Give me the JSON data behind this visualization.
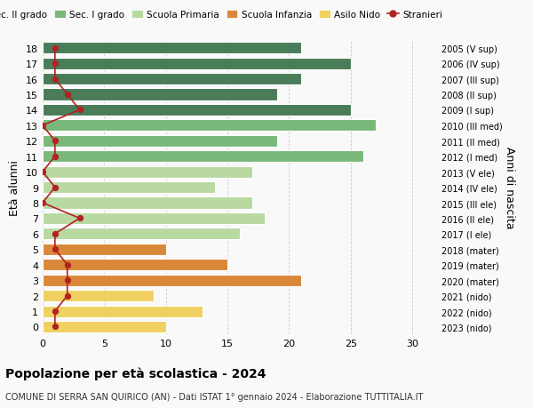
{
  "ages": [
    18,
    17,
    16,
    15,
    14,
    13,
    12,
    11,
    10,
    9,
    8,
    7,
    6,
    5,
    4,
    3,
    2,
    1,
    0
  ],
  "right_labels": [
    "2005 (V sup)",
    "2006 (IV sup)",
    "2007 (III sup)",
    "2008 (II sup)",
    "2009 (I sup)",
    "2010 (III med)",
    "2011 (II med)",
    "2012 (I med)",
    "2013 (V ele)",
    "2014 (IV ele)",
    "2015 (III ele)",
    "2016 (II ele)",
    "2017 (I ele)",
    "2018 (mater)",
    "2019 (mater)",
    "2020 (mater)",
    "2021 (nido)",
    "2022 (nido)",
    "2023 (nido)"
  ],
  "bar_values": [
    21,
    25,
    21,
    19,
    25,
    27,
    19,
    26,
    17,
    14,
    17,
    18,
    16,
    10,
    15,
    21,
    9,
    13,
    10
  ],
  "bar_colors": [
    "#4a7c59",
    "#4a7c59",
    "#4a7c59",
    "#4a7c59",
    "#4a7c59",
    "#7ab87a",
    "#7ab87a",
    "#7ab87a",
    "#b8d9a0",
    "#b8d9a0",
    "#b8d9a0",
    "#b8d9a0",
    "#b8d9a0",
    "#d9883a",
    "#d9883a",
    "#d9883a",
    "#f0d060",
    "#f0d060",
    "#f0d060"
  ],
  "stranieri_values": [
    1,
    1,
    1,
    2,
    3,
    0,
    1,
    1,
    0,
    1,
    0,
    3,
    1,
    1,
    2,
    2,
    2,
    1,
    1
  ],
  "stranieri_color": "#b22222",
  "legend_labels": [
    "Sec. II grado",
    "Sec. I grado",
    "Scuola Primaria",
    "Scuola Infanzia",
    "Asilo Nido",
    "Stranieri"
  ],
  "legend_colors": [
    "#4a7c59",
    "#7ab87a",
    "#b8d9a0",
    "#d9883a",
    "#f0d060",
    "#b22222"
  ],
  "xlabel": "Età alunni",
  "ylabel_right": "Anni di nascita",
  "title": "Popolazione per età scolastica - 2024",
  "subtitle": "COMUNE DI SERRA SAN QUIRICO (AN) - Dati ISTAT 1° gennaio 2024 - Elaborazione TUTTITALIA.IT",
  "xlim": [
    0,
    32
  ],
  "background_color": "#f9f9f9",
  "grid_color": "#cccccc"
}
